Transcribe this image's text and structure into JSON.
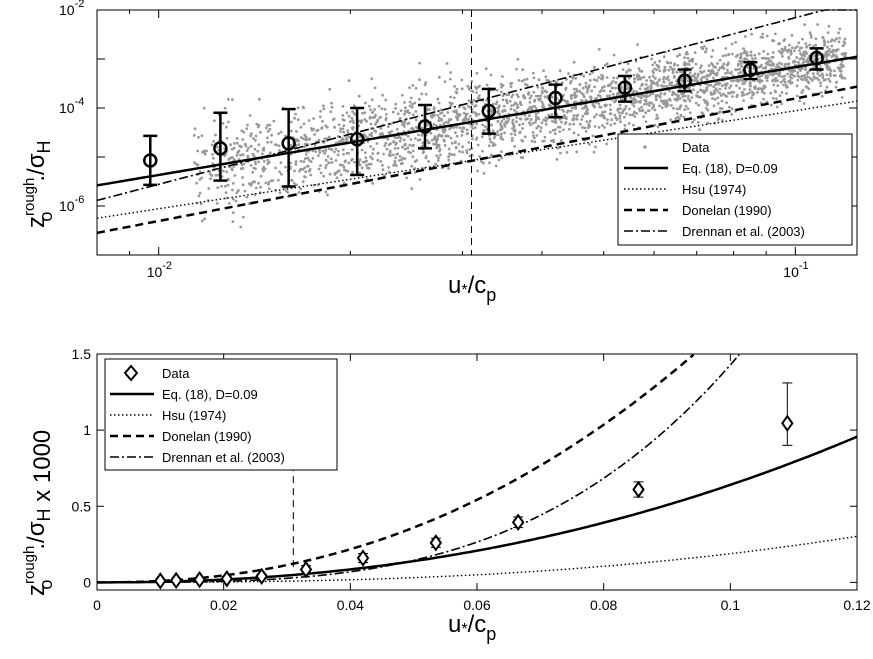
{
  "chart_data": [
    {
      "type": "scatter",
      "xscale": "log",
      "yscale": "log",
      "xlim": [
        0.008,
        0.125
      ],
      "ylim": [
        1e-07,
        0.01
      ],
      "xlabel": "u",
      "xlabel_sub": "*",
      "xlabel_tail": "/c",
      "xlabel_tail_sub": "p",
      "ylabel": "z",
      "ylabel_sup": "rough",
      "ylabel_sub": "o",
      "ylabel_tail": "./σ",
      "ylabel_tail_sub": "H",
      "x_tick_labels": [
        {
          "x": 0.01,
          "base": "10",
          "exp": "-2"
        },
        {
          "x": 0.1,
          "base": "10",
          "exp": "-1"
        }
      ],
      "y_tick_labels": [
        {
          "y": 0.01,
          "base": "10",
          "exp": "-2"
        },
        {
          "y": 0.0001,
          "base": "10",
          "exp": "-4"
        },
        {
          "y": 1e-06,
          "base": "10",
          "exp": "-6"
        }
      ],
      "vline_x": 0.031,
      "scatter_color": "#999999",
      "legend_position": "bottom-right",
      "legend": [
        "Data",
        "Eq. (18), D=0.09",
        "Hsu (1974)",
        "Donelan (1990)",
        "Drennan et al. (2003)"
      ],
      "binned_points": [
        {
          "x": 0.0097,
          "y": 8.5e-06,
          "lo": 2.7e-06,
          "hi": 2.7e-05
        },
        {
          "x": 0.0125,
          "y": 1.5e-05,
          "lo": 3.3e-06,
          "hi": 8e-05
        },
        {
          "x": 0.016,
          "y": 1.9e-05,
          "lo": 2.5e-06,
          "hi": 9.5e-05
        },
        {
          "x": 0.0205,
          "y": 2.3e-05,
          "lo": 4.3e-06,
          "hi": 0.0001
        },
        {
          "x": 0.0262,
          "y": 4.2e-05,
          "lo": 1.5e-05,
          "hi": 0.000115
        },
        {
          "x": 0.033,
          "y": 8.7e-05,
          "lo": 3e-05,
          "hi": 0.000245
        },
        {
          "x": 0.042,
          "y": 0.00016,
          "lo": 6.5e-05,
          "hi": 0.0003
        },
        {
          "x": 0.054,
          "y": 0.00026,
          "lo": 0.000135,
          "hi": 0.00045
        },
        {
          "x": 0.067,
          "y": 0.00036,
          "lo": 0.00022,
          "hi": 0.00061
        },
        {
          "x": 0.085,
          "y": 0.0006,
          "lo": 0.00039,
          "hi": 0.00086
        },
        {
          "x": 0.108,
          "y": 0.00105,
          "lo": 0.00061,
          "hi": 0.00165
        }
      ]
    },
    {
      "type": "line",
      "xlim": [
        0,
        0.12
      ],
      "ylim": [
        -0.05,
        1.5
      ],
      "xlabel": "u",
      "xlabel_sub": "*",
      "xlabel_tail": "/c",
      "xlabel_tail_sub": "p",
      "ylabel": "z",
      "ylabel_sup": "rough",
      "ylabel_sub": "o",
      "ylabel_tail": "./σ",
      "ylabel_tail_sub": "H",
      "ylabel_suffix": " x 1000",
      "x_ticks": [
        0,
        0.02,
        0.04,
        0.06,
        0.08,
        0.1,
        0.12
      ],
      "x_tick_labels": [
        "0",
        "0.02",
        "0.04",
        "0.06",
        "0.08",
        "0.1",
        "0.12"
      ],
      "y_ticks": [
        0,
        0.5,
        1,
        1.5
      ],
      "y_tick_labels": [
        "0",
        "0.5",
        "1",
        "1.5"
      ],
      "vline_x": 0.031,
      "legend_position": "top-left",
      "legend": [
        "Data",
        "Eq. (18), D=0.09",
        "Hsu (1974)",
        "Donelan (1990)",
        "Drennan et al. (2003)"
      ],
      "points": [
        {
          "x": 0.01,
          "y": 0.01,
          "lo": 0.004,
          "hi": 0.016
        },
        {
          "x": 0.0125,
          "y": 0.013,
          "lo": 0.007,
          "hi": 0.02
        },
        {
          "x": 0.0162,
          "y": 0.018,
          "lo": 0.01,
          "hi": 0.028
        },
        {
          "x": 0.0205,
          "y": 0.024,
          "lo": 0.014,
          "hi": 0.036
        },
        {
          "x": 0.026,
          "y": 0.04,
          "lo": 0.025,
          "hi": 0.055
        },
        {
          "x": 0.033,
          "y": 0.085,
          "lo": 0.06,
          "hi": 0.11
        },
        {
          "x": 0.042,
          "y": 0.16,
          "lo": 0.13,
          "hi": 0.19
        },
        {
          "x": 0.0535,
          "y": 0.26,
          "lo": 0.23,
          "hi": 0.29
        },
        {
          "x": 0.0665,
          "y": 0.395,
          "lo": 0.36,
          "hi": 0.43
        },
        {
          "x": 0.0855,
          "y": 0.61,
          "lo": 0.56,
          "hi": 0.66
        },
        {
          "x": 0.109,
          "y": 1.045,
          "lo": 0.9,
          "hi": 1.31
        }
      ]
    }
  ]
}
